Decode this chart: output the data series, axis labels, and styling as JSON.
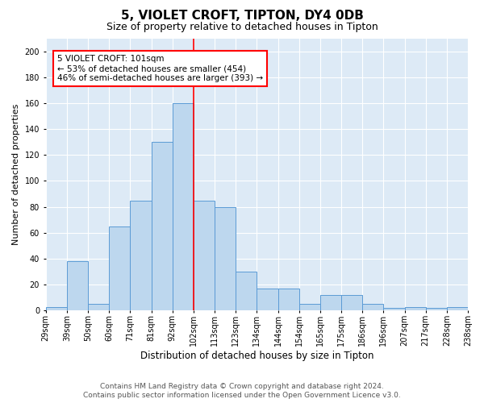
{
  "title1": "5, VIOLET CROFT, TIPTON, DY4 0DB",
  "title2": "Size of property relative to detached houses in Tipton",
  "xlabel": "Distribution of detached houses by size in Tipton",
  "ylabel": "Number of detached properties",
  "categories": [
    "29sqm",
    "39sqm",
    "50sqm",
    "60sqm",
    "71sqm",
    "81sqm",
    "92sqm",
    "102sqm",
    "113sqm",
    "123sqm",
    "134sqm",
    "144sqm",
    "154sqm",
    "165sqm",
    "175sqm",
    "186sqm",
    "196sqm",
    "207sqm",
    "217sqm",
    "228sqm",
    "238sqm"
  ],
  "bar_heights": [
    3,
    38,
    5,
    65,
    85,
    130,
    160,
    85,
    80,
    30,
    17,
    17,
    5,
    12,
    12,
    5,
    2,
    3,
    2,
    3
  ],
  "bar_color": "#bdd7ee",
  "bar_edge_color": "#5b9bd5",
  "annotation_text": "5 VIOLET CROFT: 101sqm\n← 53% of detached houses are smaller (454)\n46% of semi-detached houses are larger (393) →",
  "annotation_box_color": "white",
  "annotation_box_edge_color": "red",
  "vline_color": "red",
  "vline_x": 7,
  "ylim": [
    0,
    210
  ],
  "yticks": [
    0,
    20,
    40,
    60,
    80,
    100,
    120,
    140,
    160,
    180,
    200
  ],
  "background_color": "#ddeaf6",
  "footer1": "Contains HM Land Registry data © Crown copyright and database right 2024.",
  "footer2": "Contains public sector information licensed under the Open Government Licence v3.0.",
  "title1_fontsize": 11,
  "title2_fontsize": 9,
  "xlabel_fontsize": 8.5,
  "ylabel_fontsize": 8,
  "tick_fontsize": 7,
  "annotation_fontsize": 7.5,
  "footer_fontsize": 6.5
}
